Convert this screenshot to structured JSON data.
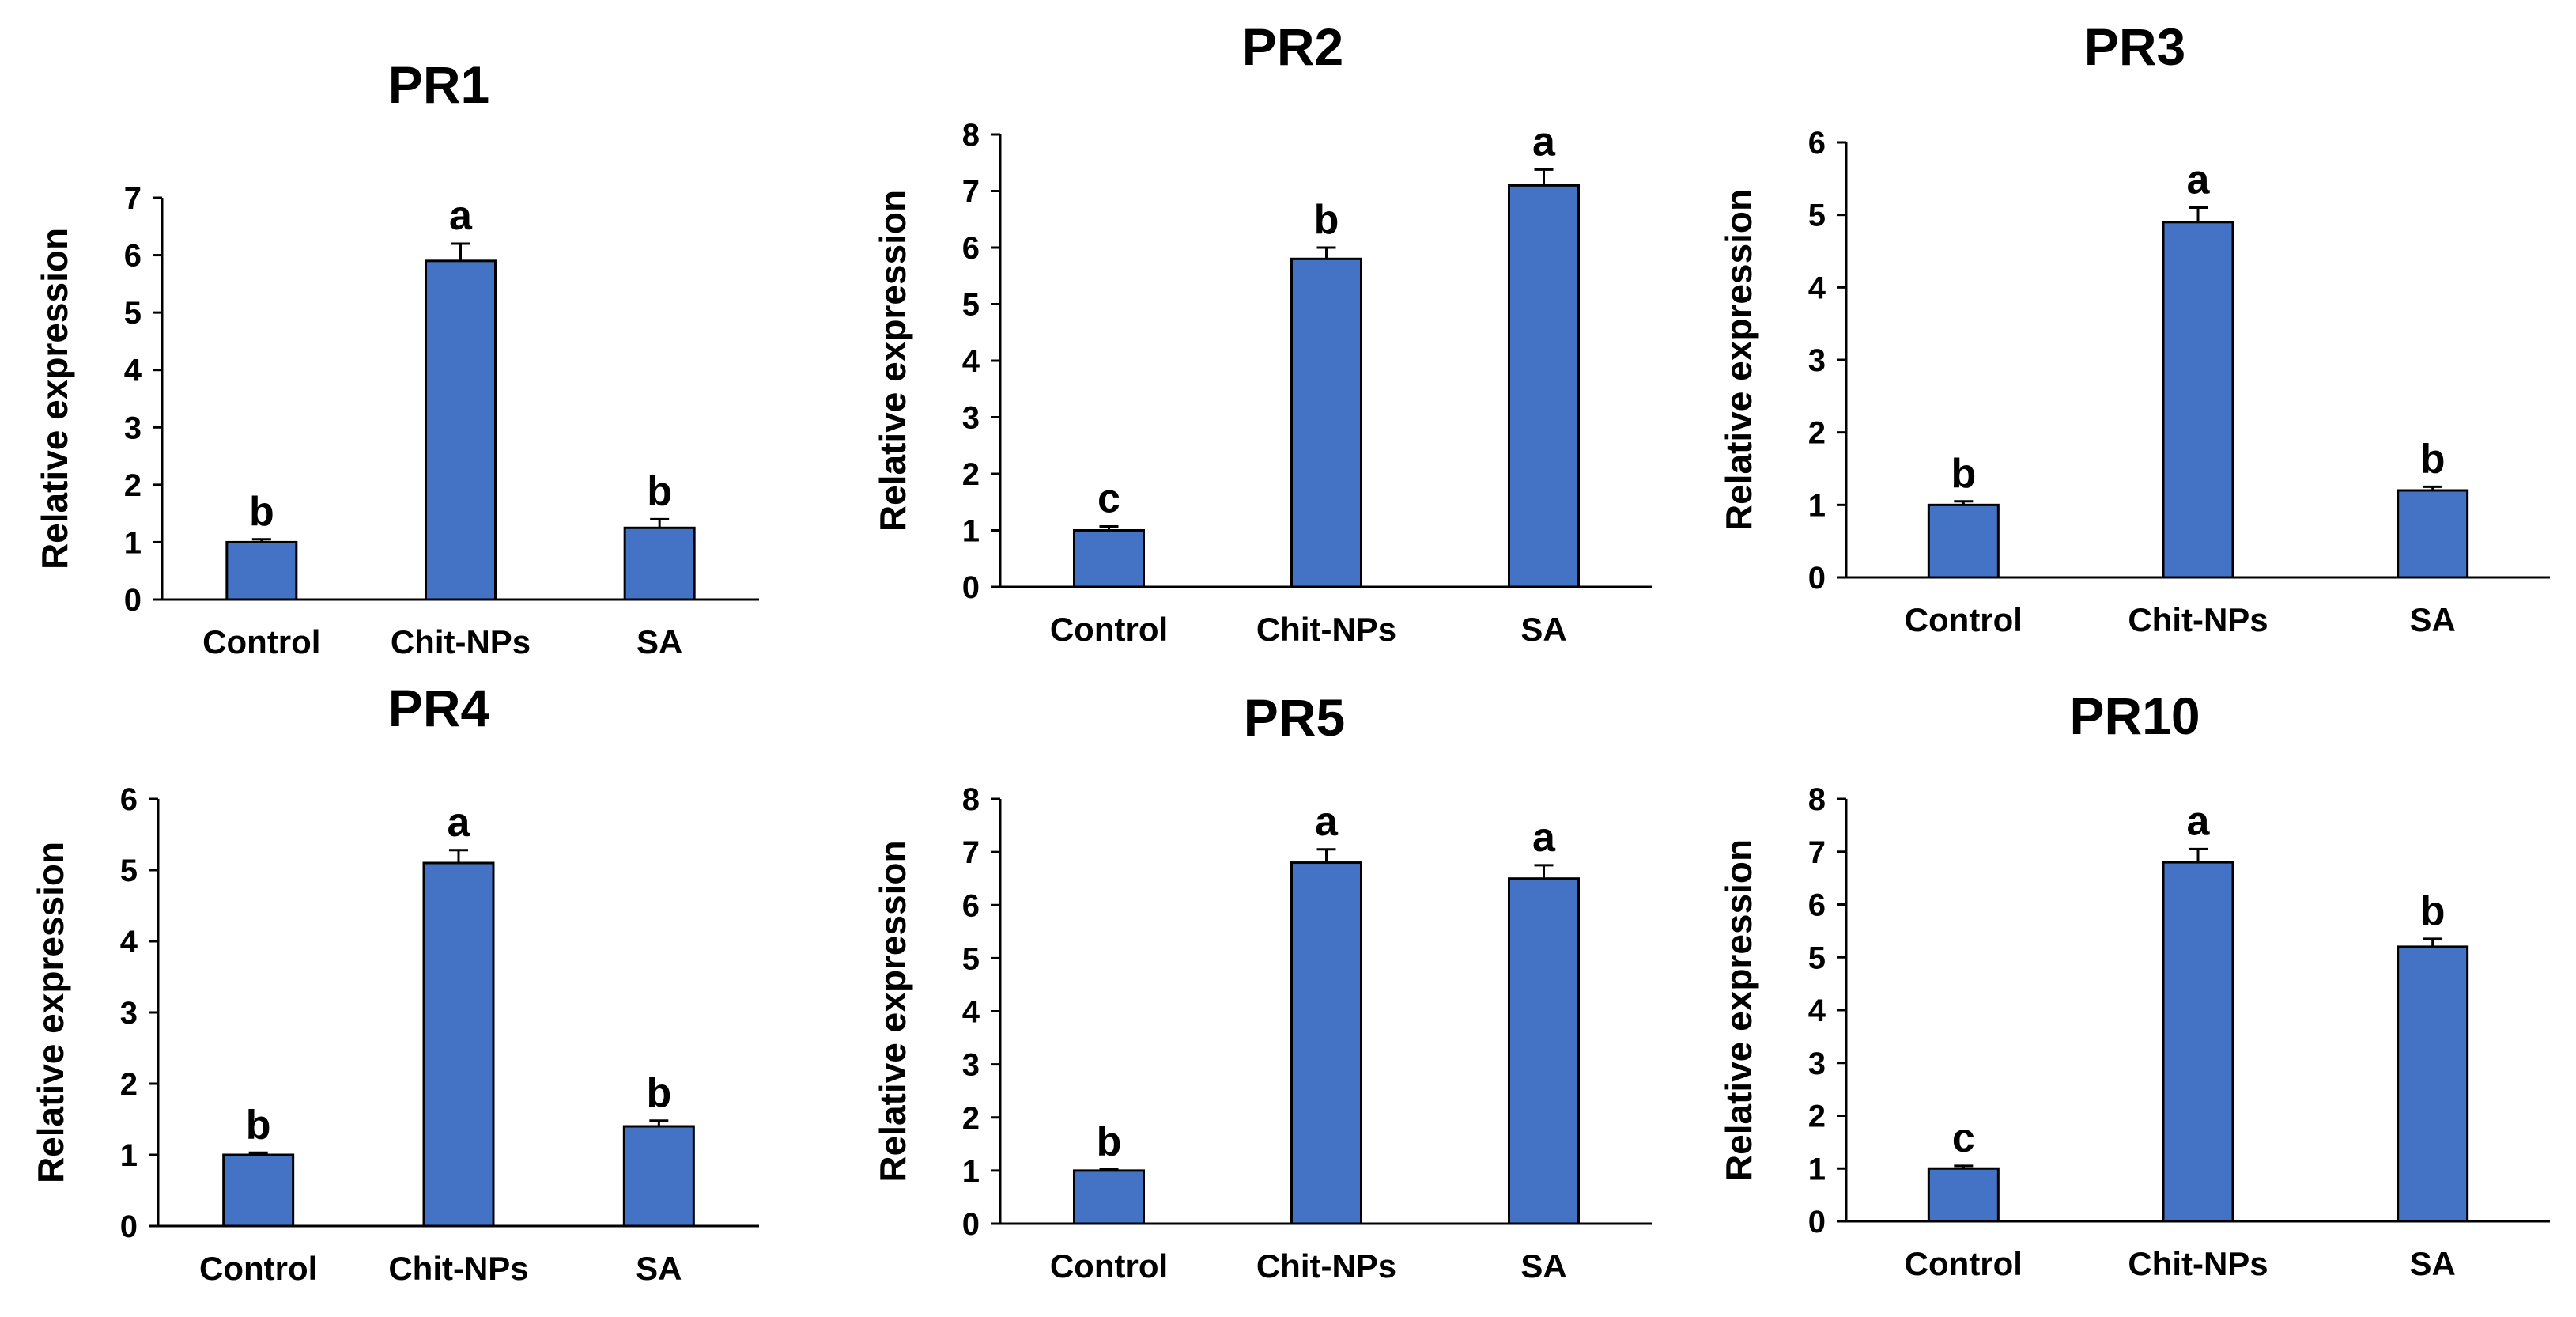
{
  "chart_data": [
    {
      "type": "bar",
      "title": "PR1",
      "categories": [
        "Control",
        "Chit-NPs",
        "SA"
      ],
      "values": [
        1.0,
        5.9,
        1.25
      ],
      "errors": [
        0.05,
        0.3,
        0.15
      ],
      "labels": [
        "b",
        "a",
        "b"
      ],
      "ylabel": "Relative expression",
      "xlabel": "",
      "ylim": [
        0,
        7
      ],
      "yticks": [
        0,
        1,
        2,
        3,
        4,
        5,
        6,
        7
      ]
    },
    {
      "type": "bar",
      "title": "PR2",
      "categories": [
        "Control",
        "Chit-NPs",
        "SA"
      ],
      "values": [
        1.0,
        5.8,
        7.1
      ],
      "errors": [
        0.07,
        0.2,
        0.28
      ],
      "labels": [
        "c",
        "b",
        "a"
      ],
      "ylabel": "Relative expression",
      "xlabel": "",
      "ylim": [
        0,
        8
      ],
      "yticks": [
        0,
        1,
        2,
        3,
        4,
        5,
        6,
        7,
        8
      ]
    },
    {
      "type": "bar",
      "title": "PR3",
      "categories": [
        "Control",
        "Chit-NPs",
        "SA"
      ],
      "values": [
        1.0,
        4.9,
        1.2
      ],
      "errors": [
        0.05,
        0.2,
        0.05
      ],
      "labels": [
        "b",
        "a",
        "b"
      ],
      "ylabel": "Relative expression",
      "xlabel": "",
      "ylim": [
        0,
        6
      ],
      "yticks": [
        0,
        1,
        2,
        3,
        4,
        5,
        6
      ]
    },
    {
      "type": "bar",
      "title": "PR4",
      "categories": [
        "Control",
        "Chit-NPs",
        "SA"
      ],
      "values": [
        1.0,
        5.1,
        1.4
      ],
      "errors": [
        0.03,
        0.18,
        0.08
      ],
      "labels": [
        "b",
        "a",
        "b"
      ],
      "ylabel": "Relative expression",
      "xlabel": "",
      "ylim": [
        0,
        6
      ],
      "yticks": [
        0,
        1,
        2,
        3,
        4,
        5,
        6
      ]
    },
    {
      "type": "bar",
      "title": "PR5",
      "categories": [
        "Control",
        "Chit-NPs",
        "SA"
      ],
      "values": [
        1.0,
        6.8,
        6.5
      ],
      "errors": [
        0.02,
        0.25,
        0.25
      ],
      "labels": [
        "b",
        "a",
        "a"
      ],
      "ylabel": "Relative expression",
      "xlabel": "",
      "ylim": [
        0,
        8
      ],
      "yticks": [
        0,
        1,
        2,
        3,
        4,
        5,
        6,
        7,
        8
      ]
    },
    {
      "type": "bar",
      "title": "PR10",
      "categories": [
        "Control",
        "Chit-NPs",
        "SA"
      ],
      "values": [
        1.0,
        6.8,
        5.2
      ],
      "errors": [
        0.05,
        0.25,
        0.15
      ],
      "labels": [
        "c",
        "a",
        "b"
      ],
      "ylabel": "Relative expression",
      "xlabel": "",
      "ylim": [
        0,
        8
      ],
      "yticks": [
        0,
        1,
        2,
        3,
        4,
        5,
        6,
        7,
        8
      ]
    }
  ]
}
